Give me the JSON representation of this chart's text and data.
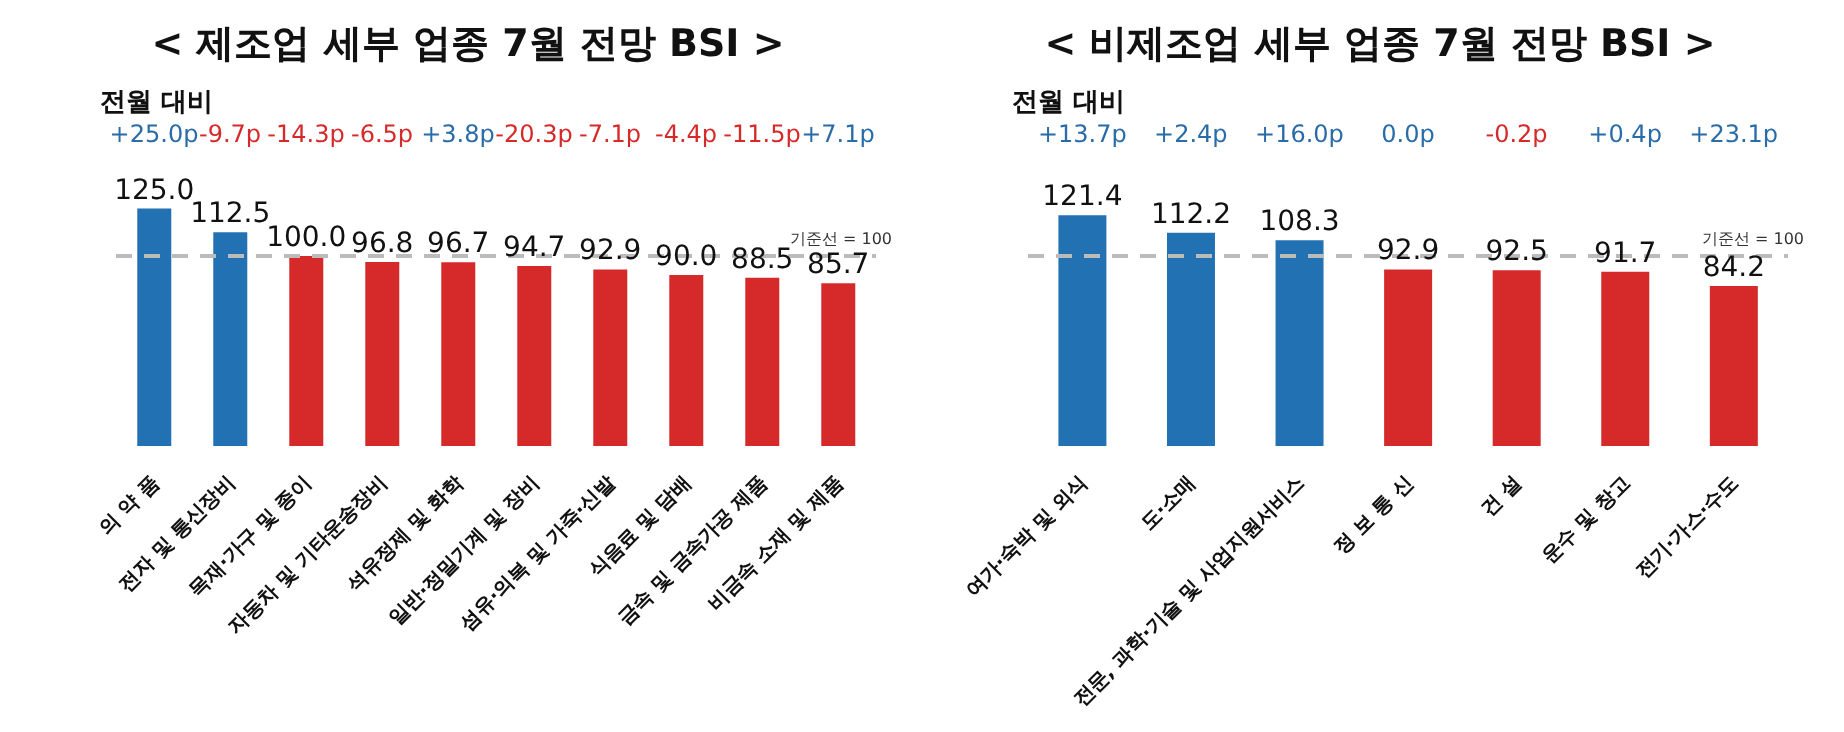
{
  "chart_data": [
    {
      "type": "bar",
      "title": "< 제조업 세부 업종 7월 전망 BSI >",
      "categories": [
        "의 약 품",
        "전자 및 통신장비",
        "목재·가구 및 종이",
        "자동차 및 기타운송장비",
        "석유정제 및 화학",
        "일반·정밀기계 및 장비",
        "섬유·의복 및 가죽·신발",
        "식음료 및 담배",
        "금속 및 금속가공 제품",
        "비금속 소재 및 제품"
      ],
      "values": [
        125.0,
        112.5,
        100.0,
        96.8,
        96.7,
        94.7,
        92.9,
        90.0,
        88.5,
        85.7
      ],
      "colors": [
        "#2271b3",
        "#2271b3",
        "#d62a2a",
        "#d62a2a",
        "#d62a2a",
        "#d62a2a",
        "#d62a2a",
        "#d62a2a",
        "#d62a2a",
        "#d62a2a"
      ],
      "value_labels": [
        "125.0",
        "112.5",
        "100.0",
        "96.8",
        "96.7",
        "94.7",
        "92.9",
        "90.0",
        "88.5",
        "85.7"
      ],
      "tick_labels": "x",
      "grid": false,
      "legend": false,
      "ref_lines": [
        {
          "axis": "y",
          "value": 100,
          "label": "기준선 = 100",
          "color": "#bbbbbb",
          "line_style": "dashed"
        }
      ],
      "annotations": [
        "전월 대비",
        "+25.0p",
        "-9.7p",
        "-14.3p",
        "-6.5p",
        "+3.8p",
        "-20.3p",
        "-7.1p",
        "-4.4p",
        "-11.5p",
        "+7.1p"
      ]
    },
    {
      "type": "bar",
      "title": "< 비제조업 세부 업종 7월 전망 BSI >",
      "categories": [
        "여가·숙박 및 외식",
        "도·소매",
        "전문, 과학·기술 및 사업지원서비스",
        "정 보 통 신",
        "건 설",
        "운수 및 창고",
        "전기·가스·수도"
      ],
      "values": [
        121.4,
        112.2,
        108.3,
        92.9,
        92.5,
        91.7,
        84.2
      ],
      "colors": [
        "#2271b3",
        "#2271b3",
        "#2271b3",
        "#d62a2a",
        "#d62a2a",
        "#d62a2a",
        "#d62a2a"
      ],
      "value_labels": [
        "121.4",
        "112.2",
        "108.3",
        "92.9",
        "92.5",
        "91.7",
        "84.2"
      ],
      "tick_labels": "x",
      "grid": false,
      "legend": false,
      "ref_lines": [
        {
          "axis": "y",
          "value": 100,
          "label": "기준선 = 100",
          "color": "#bbbbbb",
          "line_style": "dashed"
        }
      ],
      "annotations": [
        "전월 대비",
        "+13.7p",
        "+2.4p",
        "+16.0p",
        "0.0p",
        "-0.2p",
        "+0.4p",
        "+23.1p"
      ]
    }
  ]
}
